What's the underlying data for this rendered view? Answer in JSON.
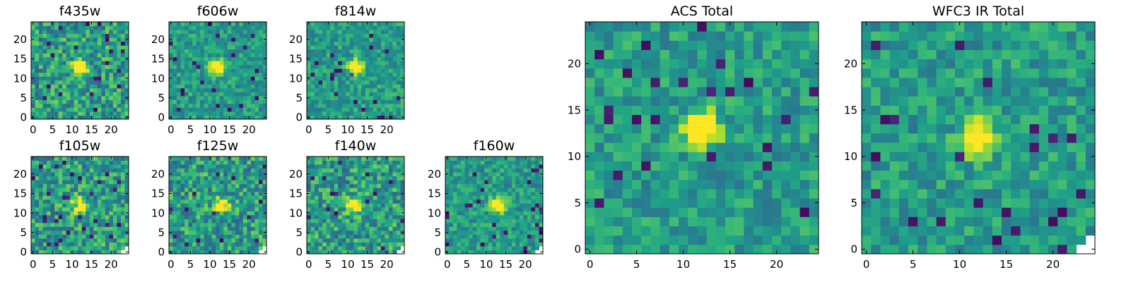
{
  "figure": {
    "colormap": "viridis",
    "image_size": 25,
    "background": "#ffffff"
  },
  "chart_data": [
    {
      "type": "heatmap",
      "title": "f435w",
      "colormap": "viridis",
      "size": [
        25,
        25
      ],
      "xticks": [
        "0",
        "5",
        "10",
        "15",
        "20"
      ],
      "yticks": [
        "0",
        "5",
        "10",
        "15",
        "20"
      ],
      "xlim": [
        0,
        24
      ],
      "ylim": [
        0,
        24
      ],
      "source_center": [
        12,
        13
      ],
      "source_strength": "high",
      "noise": "high"
    },
    {
      "type": "heatmap",
      "title": "f606w",
      "colormap": "viridis",
      "size": [
        25,
        25
      ],
      "xticks": [
        "0",
        "5",
        "10",
        "15",
        "20"
      ],
      "yticks": [
        "0",
        "5",
        "10",
        "15",
        "20"
      ],
      "xlim": [
        0,
        24
      ],
      "ylim": [
        0,
        24
      ],
      "source_center": [
        12,
        13
      ],
      "source_strength": "high",
      "noise": "medium"
    },
    {
      "type": "heatmap",
      "title": "f814w",
      "colormap": "viridis",
      "size": [
        25,
        25
      ],
      "xticks": [
        "0",
        "5",
        "10",
        "15",
        "20"
      ],
      "yticks": [
        "0",
        "5",
        "10",
        "15",
        "20"
      ],
      "xlim": [
        0,
        24
      ],
      "ylim": [
        0,
        24
      ],
      "source_center": [
        12,
        13
      ],
      "source_strength": "high",
      "noise": "medium"
    },
    {
      "type": "heatmap",
      "title": "f105w",
      "colormap": "viridis",
      "size": [
        25,
        25
      ],
      "xticks": [
        "0",
        "5",
        "10",
        "15",
        "20"
      ],
      "yticks": [
        "0",
        "5",
        "10",
        "15",
        "20"
      ],
      "xlim": [
        0,
        24
      ],
      "ylim": [
        0,
        24
      ],
      "source_center": [
        12,
        12
      ],
      "source_strength": "high",
      "noise": "high",
      "masked_corner": "bottom-right"
    },
    {
      "type": "heatmap",
      "title": "f125w",
      "colormap": "viridis",
      "size": [
        25,
        25
      ],
      "xticks": [
        "0",
        "5",
        "10",
        "15",
        "20"
      ],
      "yticks": [
        "0",
        "5",
        "10",
        "15",
        "20"
      ],
      "xlim": [
        0,
        24
      ],
      "ylim": [
        0,
        24
      ],
      "source_center": [
        13,
        12
      ],
      "source_strength": "medium",
      "noise": "high",
      "masked_corner": "bottom-right"
    },
    {
      "type": "heatmap",
      "title": "f140w",
      "colormap": "viridis",
      "size": [
        25,
        25
      ],
      "xticks": [
        "0",
        "5",
        "10",
        "15",
        "20"
      ],
      "yticks": [
        "0",
        "5",
        "10",
        "15",
        "20"
      ],
      "xlim": [
        0,
        24
      ],
      "ylim": [
        0,
        24
      ],
      "source_center": [
        12,
        12
      ],
      "source_strength": "high",
      "noise": "high",
      "masked_corner": "bottom-right"
    },
    {
      "type": "heatmap",
      "title": "f160w",
      "colormap": "viridis",
      "size": [
        25,
        25
      ],
      "xticks": [
        "0",
        "5",
        "10",
        "15",
        "20"
      ],
      "yticks": [
        "0",
        "5",
        "10",
        "15",
        "20"
      ],
      "xlim": [
        0,
        24
      ],
      "ylim": [
        0,
        24
      ],
      "source_center": [
        13,
        12
      ],
      "source_strength": "high",
      "noise": "medium",
      "masked_corner": "bottom-right"
    },
    {
      "type": "heatmap",
      "title": "ACS Total",
      "colormap": "viridis",
      "size": [
        25,
        25
      ],
      "xticks": [
        "0",
        "5",
        "10",
        "15",
        "20"
      ],
      "yticks": [
        "0",
        "5",
        "10",
        "15",
        "20"
      ],
      "xlim": [
        0,
        24
      ],
      "ylim": [
        0,
        24
      ],
      "source_center": [
        12,
        13
      ],
      "source_strength": "high",
      "noise": "medium"
    },
    {
      "type": "heatmap",
      "title": "WFC3 IR Total",
      "colormap": "viridis",
      "size": [
        25,
        25
      ],
      "xticks": [
        "0",
        "5",
        "10",
        "15",
        "20"
      ],
      "yticks": [
        "0",
        "5",
        "10",
        "15",
        "20"
      ],
      "xlim": [
        0,
        24
      ],
      "ylim": [
        0,
        24
      ],
      "source_center": [
        12,
        12
      ],
      "source_strength": "high",
      "noise": "medium",
      "masked_corner": "bottom-right"
    }
  ]
}
